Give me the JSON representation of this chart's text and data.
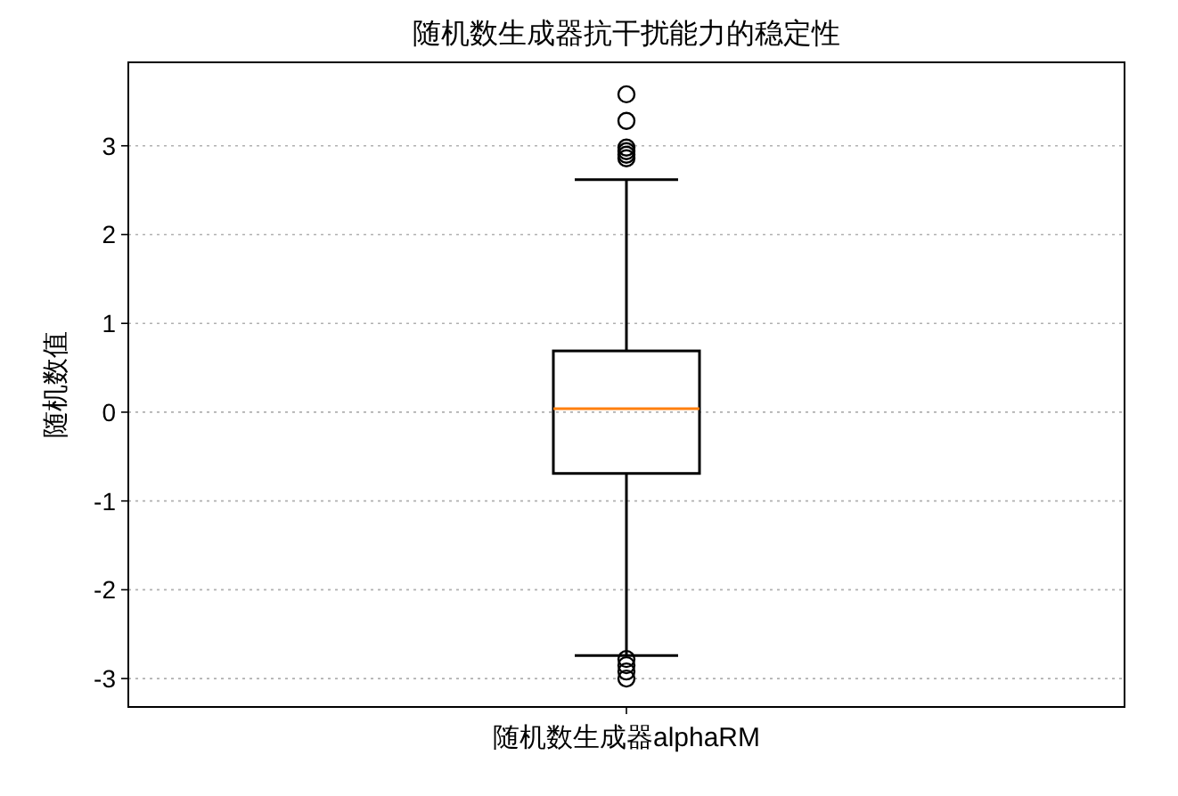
{
  "chart_data": {
    "type": "box",
    "title": "随机数生成器抗干扰能力的稳定性",
    "ylabel": "随机数值",
    "categories": [
      "随机数生成器alphaRM"
    ],
    "series": [
      {
        "color": "#000000",
        "boxes": [
          {
            "low": -2.74,
            "q1": -0.69,
            "median": 0.04,
            "q3": 0.69,
            "high": 2.62,
            "outliers": [
              3.58,
              3.28,
              2.98,
              2.94,
              2.9,
              2.86,
              -2.78,
              -2.85,
              -2.92,
              -3.0
            ]
          }
        ]
      }
    ],
    "ylim": [
      -3.32,
      3.94
    ],
    "yticks": [
      -3,
      -2,
      -1,
      0,
      1,
      2,
      3
    ],
    "grid": "y"
  }
}
